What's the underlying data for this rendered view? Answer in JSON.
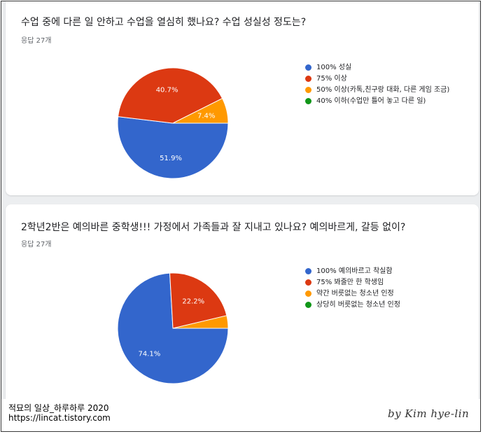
{
  "charts": [
    {
      "title": "수업 중에 다른 일 안하고 수업을 열심히 했나요? 수업 성실성 정도는?",
      "responses": "응답 27개",
      "legend": [
        "100% 성실",
        "75% 이상",
        "50% 이상(카톡,친구랑 대화, 다른 게임 조금)",
        "40% 이하(수업만 틀어 놓고 다른 일)"
      ]
    },
    {
      "title": "2학년2반은 예의바른 중학생!!! 가정에서 가족들과 잘 지내고 있나요? 예의바르게, 갈등 없이?",
      "responses": "응답 27개",
      "legend": [
        "100% 예의바르고 착실함",
        "75% 봐줄만 한 학생임",
        "약간 버릇없는 청소년 인정",
        "상당히 버릇없는 청소년 인정"
      ]
    }
  ],
  "colors": [
    "#3366cc",
    "#dc3912",
    "#ff9900",
    "#109618"
  ],
  "chart_data": [
    {
      "type": "pie",
      "title": "수업 중에 다른 일 안하고 수업을 열심히 했나요? 수업 성실성 정도는?",
      "categories": [
        "100% 성실",
        "75% 이상",
        "50% 이상(카톡,친구랑 대화, 다른 게임 조금)",
        "40% 이하(수업만 틀어 놓고 다른 일)"
      ],
      "values": [
        51.9,
        40.7,
        7.4,
        0
      ],
      "labels": [
        "51.9%",
        "40.7%",
        "7.4%",
        ""
      ],
      "legend_position": "right"
    },
    {
      "type": "pie",
      "title": "2학년2반은 예의바른 중학생!!! 가정에서 가족들과 잘 지내고 있나요? 예의바르게, 갈등 없이?",
      "categories": [
        "100% 예의바르고 착실함",
        "75% 봐줄만 한 학생임",
        "약간 버릇없는 청소년 인정",
        "상당히 버릇없는 청소년 인정"
      ],
      "values": [
        74.1,
        22.2,
        3.7,
        0
      ],
      "labels": [
        "74.1%",
        "22.2%",
        "",
        ""
      ],
      "legend_position": "right"
    }
  ],
  "footer": {
    "line1": "적묘의 일상_하루하루 2020",
    "line2": "https://lincat.tistory.com",
    "signature": "by Kim hye-lin"
  }
}
